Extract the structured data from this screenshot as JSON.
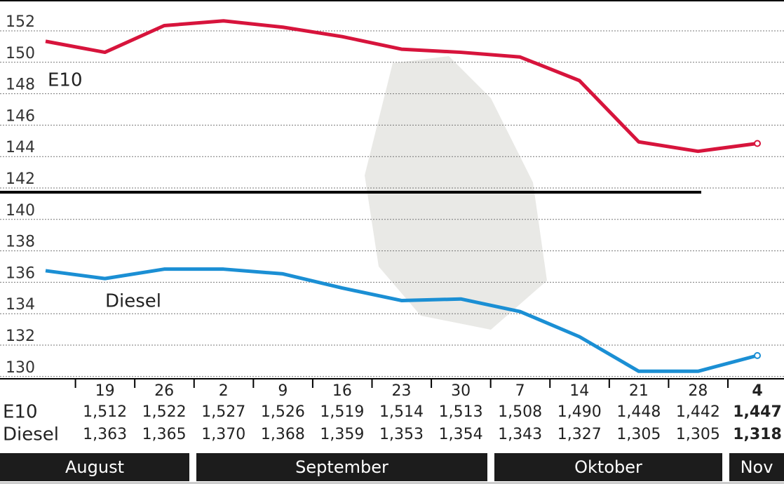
{
  "chart_data": {
    "type": "line",
    "categories": [
      null,
      "19",
      "26",
      "2",
      "9",
      "16",
      "23",
      "30",
      "7",
      "14",
      "21",
      "28",
      "4"
    ],
    "series": [
      {
        "name": "E10",
        "color": "#d7143c",
        "values": [
          150.8,
          150.1,
          151.8,
          152.1,
          151.7,
          151.1,
          150.3,
          150.1,
          149.8,
          148.3,
          144.4,
          143.8,
          144.3
        ]
      },
      {
        "name": "Diesel",
        "color": "#1b8fd4",
        "values": [
          136.2,
          135.7,
          136.3,
          136.3,
          136.0,
          135.1,
          134.3,
          134.4,
          133.6,
          132.0,
          129.8,
          129.8,
          130.8
        ]
      }
    ],
    "ylim": [
      129.5,
      153
    ],
    "yticks": [
      130,
      132,
      134,
      136,
      138,
      140,
      142,
      144,
      146,
      148,
      150,
      152
    ],
    "grid": true,
    "table": {
      "rows": [
        [
          "1,512",
          "1,522",
          "1,527",
          "1,526",
          "1,519",
          "1,514",
          "1,513",
          "1,508",
          "1,490",
          "1,448",
          "1,442",
          "1,447"
        ],
        [
          "1,363",
          "1,365",
          "1,370",
          "1,368",
          "1,359",
          "1,353",
          "1,354",
          "1,343",
          "1,327",
          "1,305",
          "1,305",
          "1,318"
        ]
      ]
    },
    "months": [
      "August",
      "September",
      "Oktober",
      "Nov"
    ]
  }
}
